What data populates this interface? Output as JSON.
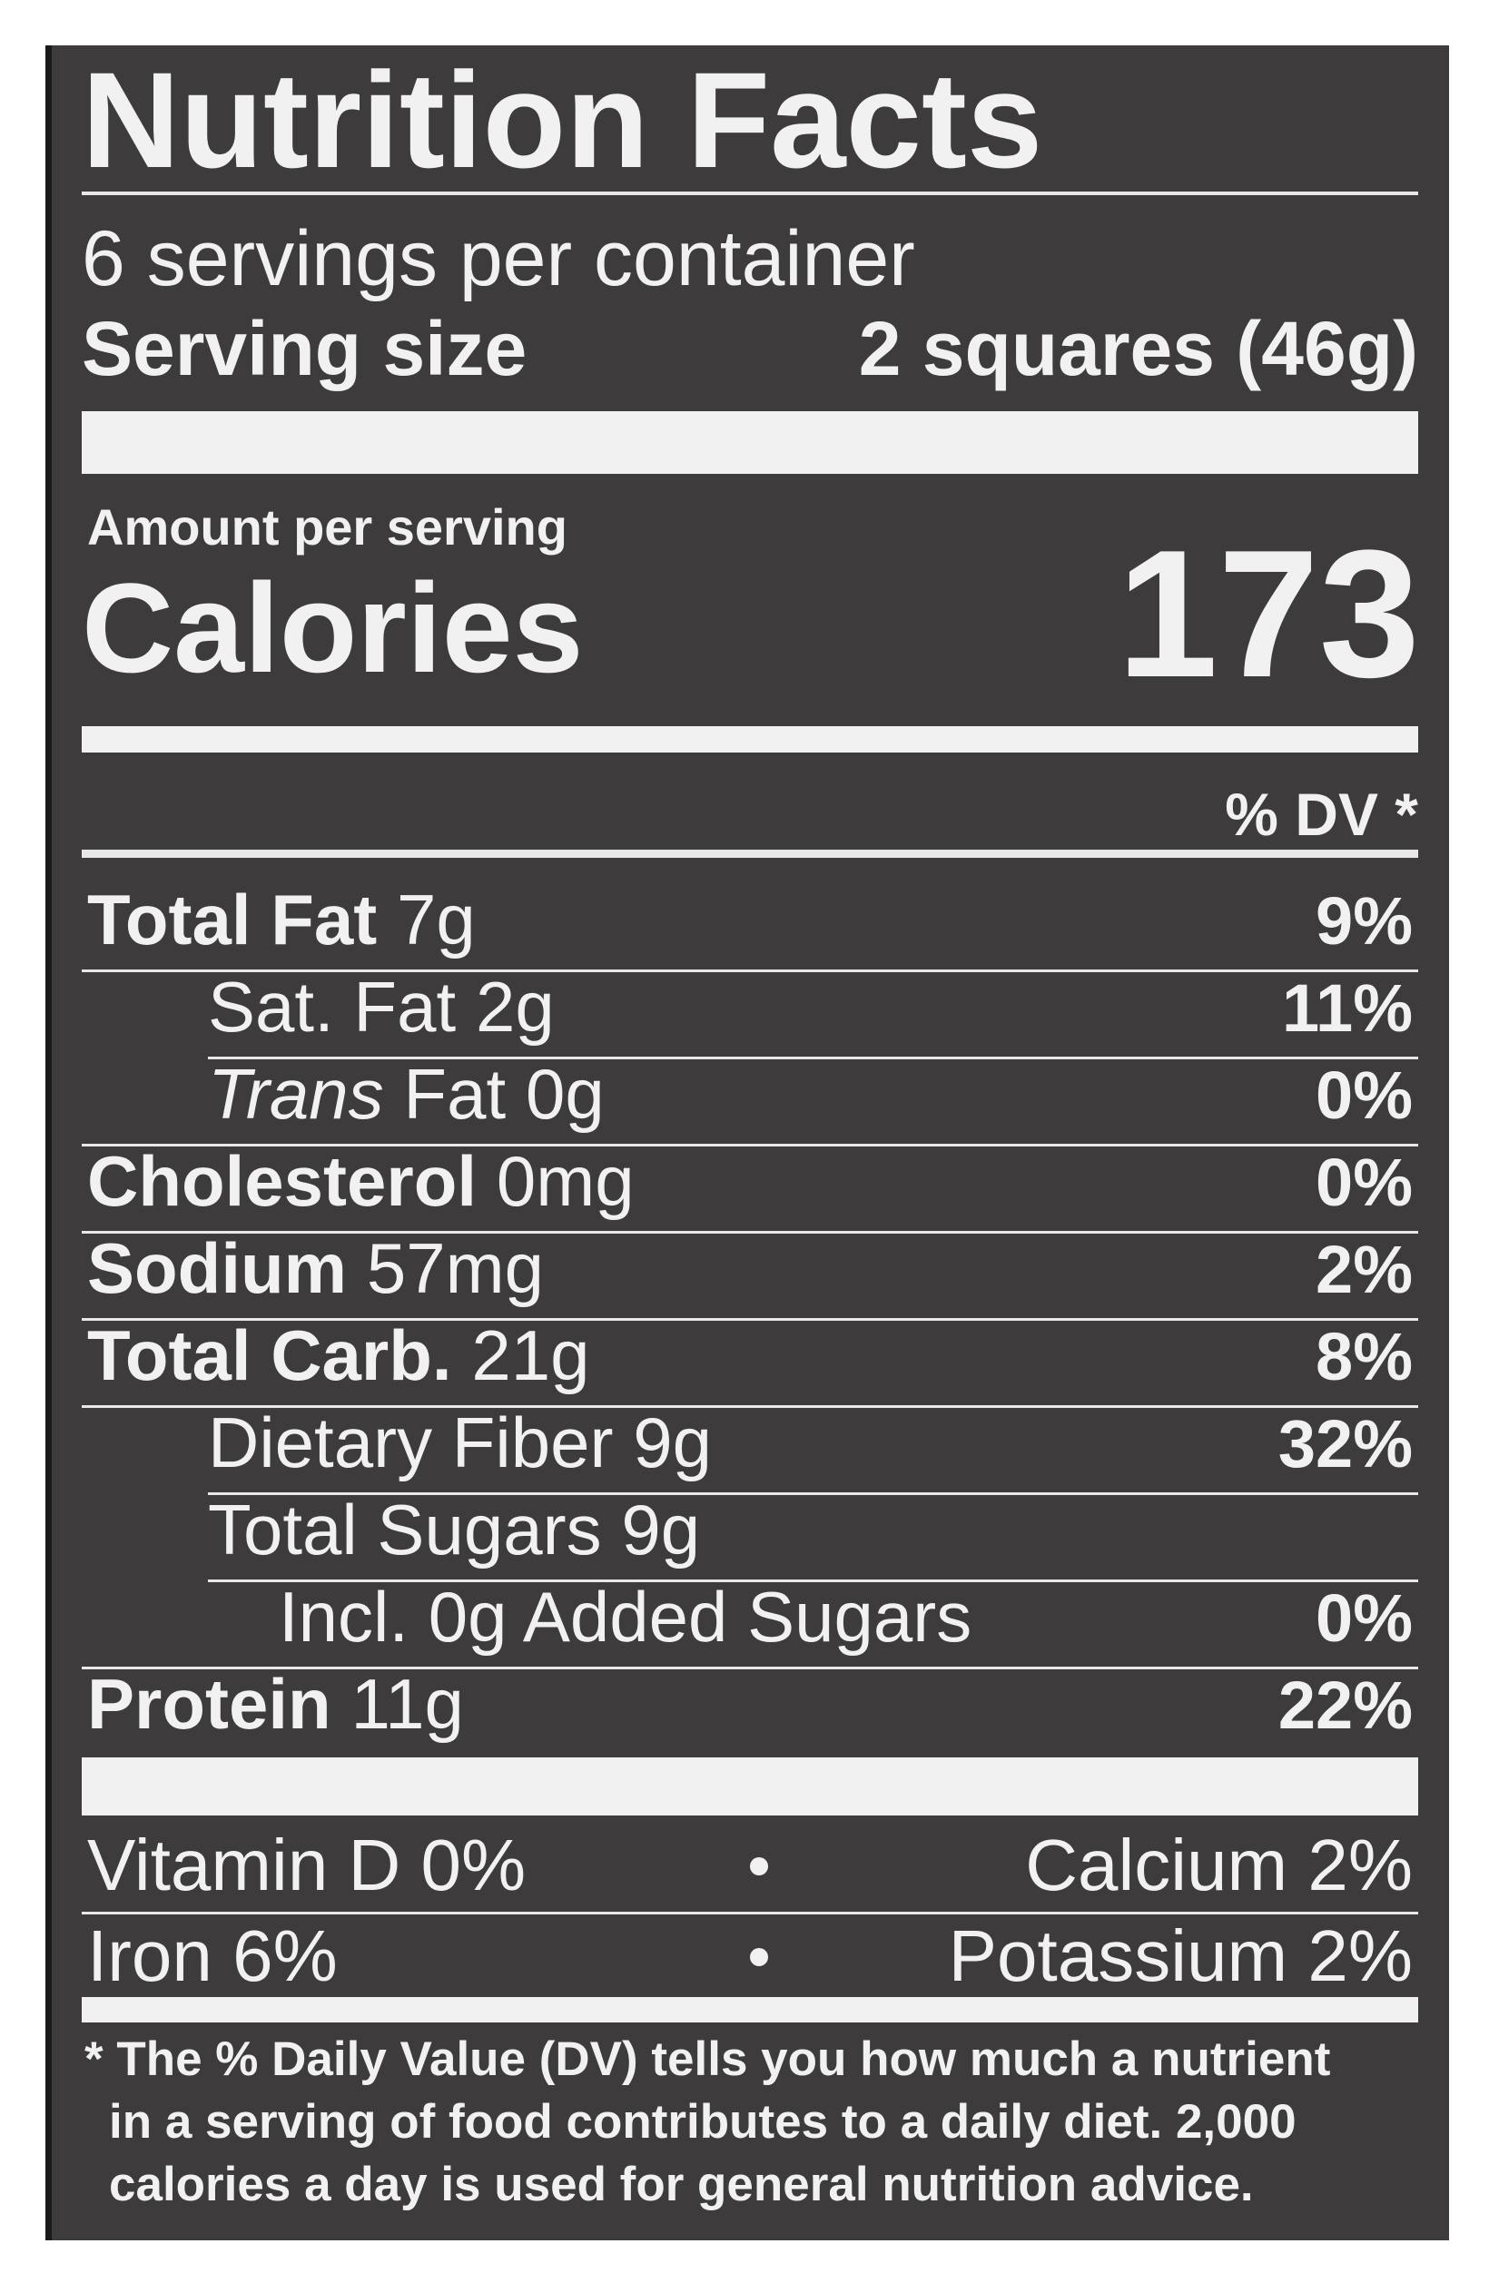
{
  "header": {
    "title": "Nutrition Facts",
    "servings": "6 servings per container",
    "serving_size_label": "Serving size",
    "serving_size_value": "2 squares (46g)"
  },
  "calories": {
    "amount_label": "Amount per serving",
    "label": "Calories",
    "value": "173"
  },
  "dv_header": "% DV *",
  "nutrients": [
    {
      "name": "Total Fat",
      "amount": "7g",
      "dv": "9%",
      "bold": true,
      "indent": 0
    },
    {
      "name": "Sat. Fat",
      "amount": "2g",
      "dv": "11%",
      "bold": false,
      "indent": 1
    },
    {
      "name_italic": "Trans",
      "name": "Fat",
      "amount": "0g",
      "dv": "0%",
      "bold": false,
      "indent": 1
    },
    {
      "name": "Cholesterol",
      "amount": "0mg",
      "dv": "0%",
      "bold": true,
      "indent": 0
    },
    {
      "name": "Sodium",
      "amount": "57mg",
      "dv": "2%",
      "bold": true,
      "indent": 0
    },
    {
      "name": "Total Carb.",
      "amount": "21g",
      "dv": "8%",
      "bold": true,
      "indent": 0
    },
    {
      "name": "Dietary Fiber",
      "amount": "9g",
      "dv": "32%",
      "bold": false,
      "indent": 1
    },
    {
      "name": "Total Sugars",
      "amount": "9g",
      "bold": false,
      "indent": 1
    },
    {
      "name": "Incl. 0g Added Sugars",
      "dv": "0%",
      "bold": false,
      "indent": 2
    },
    {
      "name": "Protein",
      "amount": "11g",
      "dv": "22%",
      "bold": true,
      "indent": 0
    }
  ],
  "vitamins": [
    [
      "Vitamin D 0%",
      "Calcium 2%"
    ],
    [
      "Iron 6%",
      "Potassium 2%"
    ]
  ],
  "footnote": [
    "* The % Daily Value (DV) tells you how much a nutrient",
    "in a serving of food contributes to a daily diet. 2,000",
    "calories a day is used for general nutrition advice."
  ]
}
